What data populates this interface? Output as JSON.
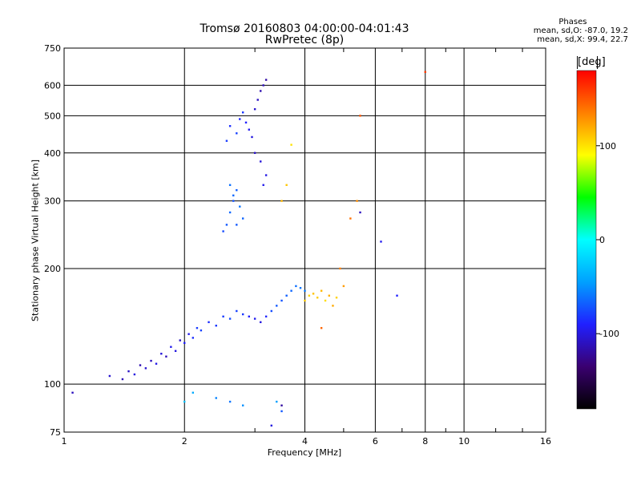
{
  "chart_data": {
    "type": "scatter",
    "title": "Tromsø 20160803 04:00:00-04:01:43",
    "subtitle": "RwPretec (8p)",
    "xlabel": "Frequency [MHz]",
    "ylabel": "Stationary phase Virtual Height [km]",
    "x_scale": "log",
    "y_scale": "log",
    "xlim": [
      1,
      16
    ],
    "ylim": [
      75,
      750
    ],
    "x_ticks": [
      1,
      2,
      4,
      6,
      8,
      10,
      16
    ],
    "y_ticks": [
      75,
      100,
      200,
      300,
      400,
      500,
      600,
      750
    ],
    "grid": true,
    "stats_header": "Phases",
    "stats": [
      "mean, sd,O: -87.0, 19.2",
      "mean, sd,X:  99.4, 22.7"
    ],
    "colorbar": {
      "label": "[deg]",
      "range": [
        -180,
        180
      ],
      "ticks": [
        100,
        0,
        -100
      ],
      "colors": [
        "#000000",
        "#3a0070",
        "#2020ff",
        "#00a0ff",
        "#00ffff",
        "#00ff00",
        "#ffff00",
        "#ff8000",
        "#ff0000"
      ]
    },
    "series": [
      {
        "x": [
          1.05,
          1.3,
          1.4,
          1.45,
          1.5,
          1.55,
          1.6,
          1.65,
          1.7,
          1.75,
          1.8,
          1.85,
          1.9,
          1.95,
          2.0,
          2.05,
          2.1,
          2.15,
          2.2,
          2.3,
          2.4,
          2.5,
          2.6,
          2.7,
          2.8,
          2.9,
          3.0,
          3.1,
          3.2,
          3.3,
          3.4,
          3.5,
          3.6,
          3.7,
          3.8,
          3.9,
          4.0
        ],
        "y": [
          95,
          105,
          103,
          108,
          106,
          112,
          110,
          115,
          113,
          120,
          118,
          125,
          122,
          130,
          128,
          135,
          132,
          140,
          138,
          145,
          142,
          150,
          148,
          155,
          152,
          150,
          148,
          145,
          150,
          155,
          160,
          165,
          170,
          175,
          180,
          178,
          175
        ],
        "phase": [
          -110,
          -105,
          -112,
          -108,
          -100,
          -115,
          -105,
          -110,
          -98,
          -102,
          -112,
          -95,
          -100,
          -108,
          -90,
          -95,
          -85,
          -80,
          -78,
          -85,
          -82,
          -80,
          -75,
          -78,
          -82,
          -90,
          -95,
          -100,
          -88,
          -75,
          -70,
          -72,
          -68,
          -65,
          -62,
          -60,
          -58
        ]
      },
      {
        "x": [
          2.5,
          2.55,
          2.6,
          2.65,
          2.7,
          2.75,
          2.8,
          2.6,
          2.65,
          2.7,
          2.55,
          2.6,
          2.7,
          2.75,
          2.8,
          2.85,
          2.9,
          2.95,
          3.0,
          3.05,
          3.1,
          3.15,
          3.2,
          3.0,
          3.1,
          3.2,
          3.15
        ],
        "y": [
          250,
          260,
          280,
          300,
          320,
          290,
          270,
          330,
          310,
          260,
          430,
          470,
          450,
          490,
          510,
          480,
          460,
          440,
          520,
          550,
          580,
          600,
          620,
          400,
          380,
          350,
          330
        ],
        "phase": [
          -75,
          -70,
          -65,
          -72,
          -68,
          -60,
          -66,
          -62,
          -64,
          -70,
          -80,
          -85,
          -78,
          -88,
          -82,
          -90,
          -95,
          -100,
          -105,
          -110,
          -115,
          -112,
          -118,
          -108,
          -102,
          -98,
          -96
        ]
      },
      {
        "x": [
          4.0,
          4.1,
          4.2,
          4.3,
          4.4,
          4.5,
          4.6,
          4.7,
          4.8,
          3.5,
          3.6,
          3.7,
          5.0,
          5.2,
          5.4,
          5.5,
          4.9,
          4.4,
          8.0
        ],
        "y": [
          165,
          170,
          172,
          168,
          175,
          165,
          170,
          160,
          168,
          300,
          330,
          420,
          180,
          270,
          300,
          500,
          200,
          140,
          650
        ],
        "phase": [
          110,
          105,
          112,
          108,
          115,
          102,
          118,
          120,
          106,
          115,
          110,
          100,
          125,
          140,
          130,
          150,
          135,
          145,
          160
        ]
      },
      {
        "x": [
          2.0,
          2.1,
          2.4,
          2.6,
          2.8,
          3.4,
          3.5,
          3.3,
          3.5,
          6.2,
          6.8,
          5.5
        ],
        "y": [
          90,
          95,
          92,
          90,
          88,
          90,
          85,
          78,
          88,
          235,
          170,
          280
        ],
        "phase": [
          -30,
          -40,
          -55,
          -60,
          -50,
          -45,
          -70,
          -100,
          -120,
          -95,
          -90,
          -110
        ]
      }
    ]
  }
}
